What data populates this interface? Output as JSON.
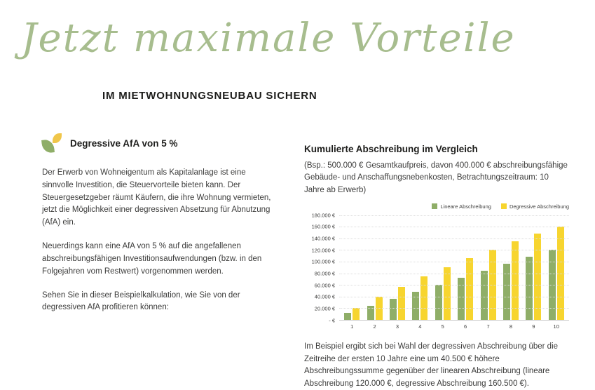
{
  "hero": {
    "script_title": "Jetzt maximale Vorteile",
    "subtitle": "IM MIETWOHNUNGSNEUBAU SICHERN"
  },
  "intro": {
    "heading": "Degressive AfA von 5 %",
    "paragraphs": [
      "Der Erwerb von Wohneigentum als Kapitalanlage ist eine sinnvolle Investition, die Steuervorteile bieten kann. Der Steuergesetzgeber räumt Käufern, die ihre Wohnung vermieten, jetzt die Möglichkeit einer degressiven Absetzung für Abnutzung (AfA) ein.",
      "Neuerdings kann eine AfA von 5 % auf die angefallenen abschreibungsfähigen Investitionsaufwendungen (bzw. in den Folgejahren vom Restwert) vorgenommen werden.",
      "Sehen Sie in dieser Beispielkalkulation, wie Sie von der degressiven AfA profitieren können:"
    ]
  },
  "chart": {
    "title": "Kumulierte Abschreibung im Vergleich",
    "subtitle": "(Bsp.: 500.000 € Gesamtkaufpreis, davon 400.000 € abschreibungsfähige Gebäude- und Anschaffungsnebenkosten, Betrachtungszeitraum: 10 Jahre ab Erwerb)",
    "footnote": "Im Beispiel ergibt sich bei Wahl der degressiven Abschreibung über die Zeitreihe der ersten 10 Jahre eine um 40.500 € höhere Abschreibungssumme gegenüber der linearen Abschreibung (lineare Abschreibung 120.000 €, degressive Abschreibung 160.500 €)."
  },
  "chart_data": {
    "type": "bar",
    "title": "Kumulierte Abschreibung im Vergleich",
    "categories": [
      "1",
      "2",
      "3",
      "4",
      "5",
      "6",
      "7",
      "8",
      "9",
      "10"
    ],
    "series": [
      {
        "name": "Lineare Abschreibung",
        "color": "#8fae68",
        "values": [
          12000,
          24000,
          36000,
          48000,
          60000,
          72000,
          84000,
          96000,
          108000,
          120000
        ]
      },
      {
        "name": "Degressive Abschreibung",
        "color": "#f7d52f",
        "values": [
          20000,
          39000,
          57050,
          74198,
          90488,
          105963,
          120665,
          134632,
          147900,
          160500
        ]
      }
    ],
    "y_ticks": [
      "180.000 €",
      "160.000 €",
      "140.000 €",
      "120.000 €",
      "100.000 €",
      "80.000 €",
      "60.000 €",
      "40.000 €",
      "20.000 €",
      "- €"
    ],
    "ylim": [
      0,
      180000
    ],
    "xlabel": "",
    "ylabel": "",
    "grid": true,
    "legend_position": "top-right"
  },
  "icons": {
    "leaf_logo": "leaf-logo"
  },
  "colors": {
    "accent_green": "#a7bd8e",
    "bar_green": "#8fae68",
    "bar_yellow": "#f7d52f",
    "text_dark": "#1d1d1b",
    "text_body": "#3c3c3b"
  }
}
